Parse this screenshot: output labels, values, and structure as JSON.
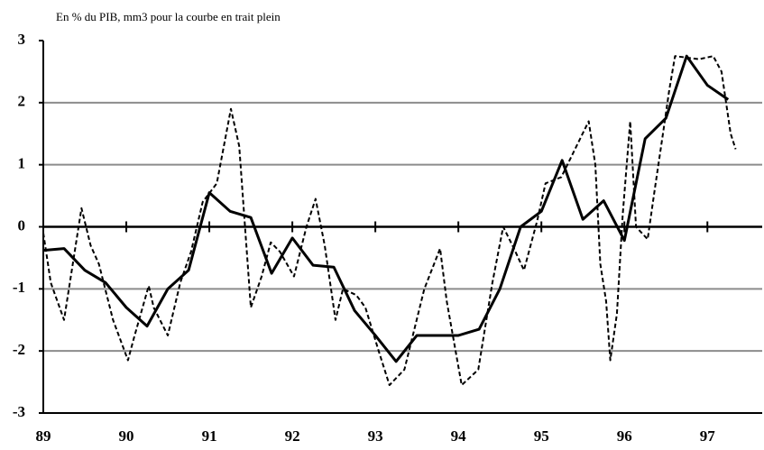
{
  "chart_data": {
    "type": "line",
    "title": "En % du PIB, mm3 pour la courbe en trait plein",
    "xlim": [
      89,
      97.66
    ],
    "xticks": [
      89,
      90,
      91,
      92,
      93,
      94,
      95,
      96,
      97
    ],
    "ylim": [
      -3,
      3
    ],
    "yticks": [
      -3,
      -2,
      -1,
      0,
      1,
      2,
      3
    ],
    "grid": true,
    "series": [
      {
        "color": "#000000",
        "dash": false,
        "x": [
          89,
          89.25,
          89.5,
          89.75,
          90,
          90.25,
          90.5,
          90.75,
          91,
          91.25,
          91.5,
          91.75,
          92,
          92.25,
          92.5,
          92.75,
          93,
          93.25,
          93.5,
          93.75,
          94,
          94.25,
          94.5,
          94.75,
          95,
          95.25,
          95.5,
          95.75,
          96,
          96.25,
          96.5,
          96.75,
          97,
          97.25
        ],
        "values": [
          -0.38,
          -0.35,
          -0.7,
          -0.9,
          -1.3,
          -1.6,
          -1.0,
          -0.7,
          0.55,
          0.25,
          0.15,
          -0.75,
          -0.18,
          -0.62,
          -0.65,
          -1.35,
          -1.75,
          -2.17,
          -1.75,
          -1.75,
          -1.75,
          -1.65,
          -1.0,
          0.0,
          0.25,
          1.07,
          0.12,
          0.42,
          -0.22,
          1.42,
          1.75,
          2.75,
          2.28,
          2.05
        ]
      },
      {
        "color": "#000000",
        "dash": true,
        "x": [
          89.0,
          89.09,
          89.25,
          89.46,
          89.57,
          89.67,
          89.84,
          90.02,
          90.09,
          90.27,
          90.33,
          90.5,
          90.65,
          90.78,
          90.92,
          91.09,
          91.26,
          91.36,
          91.5,
          91.63,
          91.74,
          91.85,
          92.02,
          92.17,
          92.28,
          92.39,
          92.52,
          92.61,
          92.77,
          92.88,
          93.04,
          93.17,
          93.35,
          93.59,
          93.78,
          93.86,
          94.04,
          94.24,
          94.41,
          94.54,
          94.67,
          94.79,
          94.95,
          95.05,
          95.24,
          95.35,
          95.57,
          95.65,
          95.71,
          95.78,
          95.83,
          95.91,
          95.98,
          96.07,
          96.14,
          96.28,
          96.36,
          96.47,
          96.54,
          96.61,
          96.9,
          97.07,
          97.17,
          97.28,
          97.34
        ],
        "values": [
          -0.1,
          -0.9,
          -1.5,
          0.3,
          -0.3,
          -0.6,
          -1.5,
          -2.15,
          -1.8,
          -0.95,
          -1.3,
          -1.75,
          -0.9,
          -0.4,
          0.4,
          0.7,
          1.9,
          1.3,
          -1.3,
          -0.8,
          -0.25,
          -0.4,
          -0.8,
          0.0,
          0.45,
          -0.3,
          -1.5,
          -1.0,
          -1.1,
          -1.3,
          -2.0,
          -2.55,
          -2.3,
          -1.0,
          -0.35,
          -1.2,
          -2.55,
          -2.3,
          -0.9,
          0.0,
          -0.35,
          -0.7,
          0.1,
          0.7,
          0.8,
          1.1,
          1.7,
          1.0,
          -0.6,
          -1.2,
          -2.15,
          -1.4,
          0.2,
          1.7,
          0.0,
          -0.2,
          0.55,
          1.55,
          2.2,
          2.75,
          2.7,
          2.75,
          2.5,
          1.5,
          1.25
        ]
      }
    ]
  }
}
